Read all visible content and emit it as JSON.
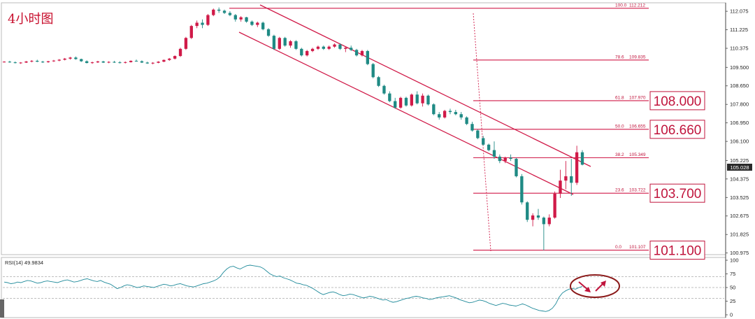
{
  "title": "4小时图",
  "chart_data": [
    {
      "type": "candlestick",
      "title": "4小时图",
      "ylim": [
        100.9,
        112.4
      ],
      "yticks": [
        "112.075",
        "111.225",
        "110.375",
        "109.500",
        "108.650",
        "107.800",
        "106.950",
        "106.100",
        "105.225",
        "104.375",
        "103.525",
        "102.675",
        "101.825",
        "100.975"
      ],
      "current_price": "105.028",
      "candles": [
        [
          109.75,
          109.78,
          109.72,
          109.76
        ],
        [
          109.76,
          109.8,
          109.71,
          109.73
        ],
        [
          109.73,
          109.77,
          109.68,
          109.7
        ],
        [
          109.7,
          109.74,
          109.66,
          109.72
        ],
        [
          109.72,
          109.79,
          109.7,
          109.77
        ],
        [
          109.77,
          109.83,
          109.73,
          109.8
        ],
        [
          109.8,
          109.85,
          109.74,
          109.76
        ],
        [
          109.76,
          109.8,
          109.7,
          109.74
        ],
        [
          109.74,
          109.8,
          109.71,
          109.78
        ],
        [
          109.78,
          109.84,
          109.75,
          109.81
        ],
        [
          109.81,
          109.88,
          109.78,
          109.85
        ],
        [
          109.85,
          109.93,
          109.82,
          109.9
        ],
        [
          109.9,
          109.98,
          109.86,
          109.95
        ],
        [
          109.95,
          110.0,
          109.85,
          109.88
        ],
        [
          109.88,
          109.9,
          109.75,
          109.78
        ],
        [
          109.78,
          109.82,
          109.68,
          109.7
        ],
        [
          109.7,
          109.76,
          109.66,
          109.73
        ],
        [
          109.73,
          109.8,
          109.7,
          109.77
        ],
        [
          109.77,
          109.8,
          109.7,
          109.72
        ],
        [
          109.72,
          109.78,
          109.69,
          109.75
        ],
        [
          109.75,
          109.8,
          109.7,
          109.73
        ],
        [
          109.73,
          109.78,
          109.68,
          109.71
        ],
        [
          109.71,
          109.77,
          109.68,
          109.74
        ],
        [
          109.74,
          109.82,
          109.72,
          109.8
        ],
        [
          109.8,
          109.86,
          109.76,
          109.78
        ],
        [
          109.78,
          109.82,
          109.7,
          109.72
        ],
        [
          109.72,
          109.76,
          109.66,
          109.68
        ],
        [
          109.68,
          109.74,
          109.64,
          109.71
        ],
        [
          109.71,
          109.78,
          109.69,
          109.76
        ],
        [
          109.76,
          109.86,
          109.74,
          109.84
        ],
        [
          109.84,
          109.93,
          109.8,
          109.9
        ],
        [
          109.9,
          110.05,
          109.86,
          110.02
        ],
        [
          110.02,
          110.4,
          109.98,
          110.35
        ],
        [
          110.35,
          110.9,
          110.3,
          110.85
        ],
        [
          110.85,
          111.45,
          110.8,
          111.4
        ],
        [
          111.4,
          111.65,
          111.3,
          111.55
        ],
        [
          111.55,
          111.7,
          111.3,
          111.45
        ],
        [
          111.45,
          111.95,
          111.4,
          111.9
        ],
        [
          111.9,
          112.2,
          111.85,
          112.15
        ],
        [
          112.15,
          112.25,
          112.0,
          112.1
        ],
        [
          112.1,
          112.15,
          111.95,
          112.0
        ],
        [
          112.0,
          112.08,
          111.85,
          111.9
        ],
        [
          111.9,
          111.95,
          111.6,
          111.7
        ],
        [
          111.7,
          111.85,
          111.6,
          111.8
        ],
        [
          111.8,
          111.82,
          111.55,
          111.6
        ],
        [
          111.6,
          111.65,
          111.4,
          111.45
        ],
        [
          111.45,
          111.6,
          111.35,
          111.55
        ],
        [
          111.55,
          111.6,
          111.2,
          111.25
        ],
        [
          111.25,
          111.3,
          110.9,
          110.95
        ],
        [
          110.95,
          111.0,
          110.3,
          110.35
        ],
        [
          110.35,
          110.9,
          110.3,
          110.85
        ],
        [
          110.85,
          110.9,
          110.45,
          110.5
        ],
        [
          110.5,
          110.75,
          110.4,
          110.7
        ],
        [
          110.7,
          110.75,
          110.3,
          110.35
        ],
        [
          110.35,
          110.4,
          110.0,
          110.05
        ],
        [
          110.05,
          110.3,
          110.0,
          110.25
        ],
        [
          110.25,
          110.4,
          110.2,
          110.35
        ],
        [
          110.35,
          110.5,
          110.3,
          110.45
        ],
        [
          110.45,
          110.5,
          110.3,
          110.35
        ],
        [
          110.35,
          110.5,
          110.3,
          110.45
        ],
        [
          110.45,
          110.6,
          110.4,
          110.55
        ],
        [
          110.55,
          110.6,
          110.3,
          110.35
        ],
        [
          110.35,
          110.45,
          110.2,
          110.4
        ],
        [
          110.4,
          110.5,
          110.25,
          110.3
        ],
        [
          110.3,
          110.35,
          110.0,
          110.05
        ],
        [
          110.05,
          110.3,
          110.0,
          110.25
        ],
        [
          110.25,
          110.3,
          109.6,
          109.65
        ],
        [
          109.65,
          109.7,
          109.0,
          109.05
        ],
        [
          109.05,
          109.1,
          108.6,
          108.65
        ],
        [
          108.65,
          108.7,
          108.25,
          108.3
        ],
        [
          108.3,
          108.4,
          107.9,
          107.95
        ],
        [
          107.95,
          108.1,
          107.6,
          107.65
        ],
        [
          107.65,
          108.15,
          107.6,
          108.1
        ],
        [
          108.1,
          108.15,
          107.7,
          107.75
        ],
        [
          107.75,
          108.3,
          107.7,
          108.25
        ],
        [
          108.25,
          108.4,
          107.8,
          107.85
        ],
        [
          107.85,
          108.3,
          107.7,
          108.2
        ],
        [
          108.2,
          108.25,
          107.75,
          107.8
        ],
        [
          107.8,
          107.85,
          107.3,
          107.35
        ],
        [
          107.35,
          107.45,
          107.1,
          107.2
        ],
        [
          107.2,
          107.55,
          107.15,
          107.5
        ],
        [
          107.5,
          107.6,
          107.35,
          107.45
        ],
        [
          107.45,
          107.55,
          107.3,
          107.35
        ],
        [
          107.35,
          107.45,
          107.1,
          107.2
        ],
        [
          107.2,
          107.25,
          106.85,
          106.9
        ],
        [
          106.9,
          107.0,
          106.55,
          106.6
        ],
        [
          106.6,
          106.65,
          106.2,
          106.25
        ],
        [
          106.25,
          106.35,
          105.9,
          105.95
        ],
        [
          105.95,
          106.0,
          105.65,
          105.7
        ],
        [
          105.7,
          106.1,
          105.3,
          105.4
        ],
        [
          105.4,
          105.5,
          105.1,
          105.2
        ],
        [
          105.2,
          105.4,
          105.1,
          105.35
        ],
        [
          105.35,
          105.5,
          105.2,
          105.3
        ],
        [
          105.3,
          105.35,
          104.45,
          104.5
        ],
        [
          104.5,
          104.6,
          103.2,
          103.3
        ],
        [
          103.3,
          103.35,
          102.4,
          102.5
        ],
        [
          102.5,
          102.8,
          102.2,
          102.7
        ],
        [
          102.7,
          103.0,
          102.5,
          102.6
        ],
        [
          102.6,
          102.65,
          101.1,
          102.3
        ],
        [
          102.3,
          102.75,
          102.2,
          102.6
        ],
        [
          102.6,
          103.8,
          102.55,
          103.7
        ],
        [
          103.7,
          104.8,
          103.5,
          104.3
        ],
        [
          104.3,
          105.2,
          103.9,
          104.5
        ],
        [
          104.5,
          105.3,
          103.6,
          104.2
        ],
        [
          104.2,
          105.9,
          104.1,
          105.6
        ],
        [
          105.6,
          105.7,
          105.0,
          105.03
        ]
      ],
      "fibonacci": [
        {
          "ratio": "100.0",
          "price": "112.212",
          "value": 112.212
        },
        {
          "ratio": "78.6",
          "price": "109.835",
          "value": 109.835
        },
        {
          "ratio": "61.8",
          "price": "107.970",
          "value": 107.97
        },
        {
          "ratio": "50.0",
          "price": "106.655",
          "value": 106.655
        },
        {
          "ratio": "38.2",
          "price": "105.349",
          "value": 105.349
        },
        {
          "ratio": "23.6",
          "price": "103.722",
          "value": 103.722
        },
        {
          "ratio": "0.0",
          "price": "101.107",
          "value": 101.107
        }
      ],
      "key_levels": [
        {
          "label": "108.000",
          "value": 107.97
        },
        {
          "label": "106.660",
          "value": 106.655
        },
        {
          "label": "103.700",
          "value": 103.722
        },
        {
          "label": "101.100",
          "value": 101.107
        }
      ]
    },
    {
      "type": "line",
      "title": "RSI(14) 49.9834",
      "ylim": [
        0,
        100
      ],
      "yticks": [
        "100",
        "75",
        "50",
        "25",
        "0"
      ],
      "levels": [
        30,
        50,
        70
      ],
      "values": [
        60,
        59,
        57,
        58,
        60,
        59,
        61,
        63,
        62,
        60,
        58,
        59,
        61,
        62,
        61,
        60,
        59,
        61,
        63,
        64,
        62,
        60,
        61,
        63,
        65,
        66,
        64,
        62,
        61,
        63,
        60,
        58,
        56,
        52,
        48,
        50,
        53,
        55,
        54,
        52,
        50,
        51,
        53,
        52,
        51,
        50,
        52,
        54,
        56,
        55,
        53,
        54,
        56,
        57,
        55,
        53,
        52,
        51,
        53,
        55,
        57,
        58,
        60,
        62,
        65,
        70,
        78,
        84,
        88,
        89,
        86,
        84,
        87,
        90,
        91,
        90,
        89,
        88,
        85,
        80,
        75,
        72,
        70,
        71,
        68,
        66,
        64,
        61,
        58,
        57,
        55,
        54,
        51,
        48,
        44,
        40,
        37,
        39,
        41,
        42,
        40,
        37,
        35,
        36,
        38,
        37,
        35,
        33,
        31,
        32,
        34,
        33,
        31,
        29,
        27,
        28,
        25,
        23,
        24,
        26,
        28,
        30,
        31,
        33,
        34,
        33,
        31,
        30,
        28,
        29,
        31,
        32,
        33,
        34,
        35,
        33,
        31,
        28,
        26,
        24,
        22,
        23,
        25,
        27,
        26,
        24,
        21,
        19,
        17,
        19,
        21,
        20,
        18,
        17,
        16,
        18,
        20,
        18,
        15,
        12,
        10,
        8,
        7,
        6,
        8,
        12,
        20,
        32,
        40,
        44,
        47,
        48,
        47,
        50,
        52
      ]
    }
  ]
}
